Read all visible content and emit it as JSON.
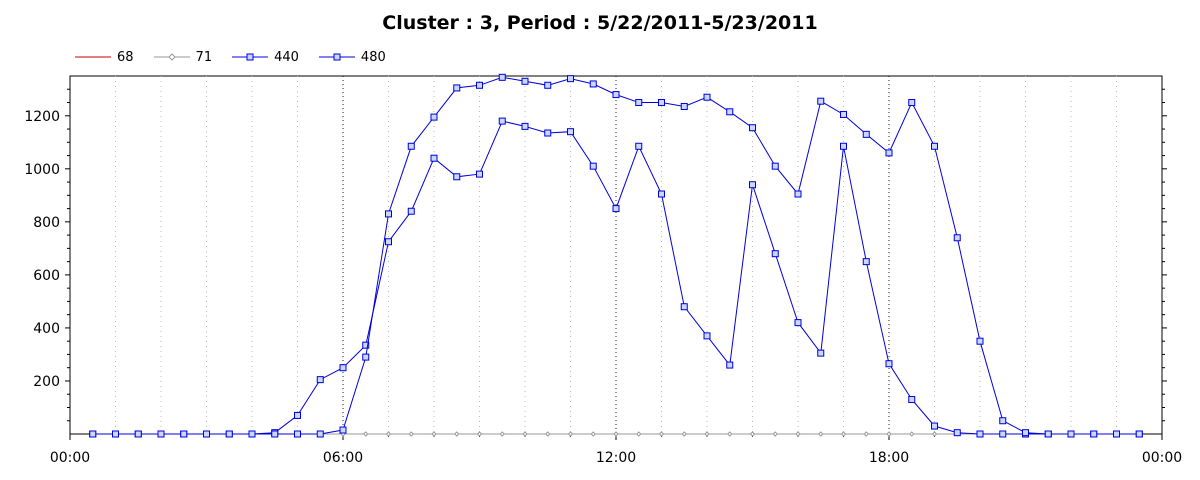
{
  "chart_data": {
    "type": "line",
    "title": "Cluster : 3, Period : 5/22/2011-5/23/2011",
    "xlabel": "",
    "ylabel": "",
    "xlim": [
      0,
      24
    ],
    "ylim": [
      0,
      1350
    ],
    "x_ticks": [
      "00:00",
      "06:00",
      "12:00",
      "18:00",
      "00:00"
    ],
    "y_ticks": [
      200,
      400,
      600,
      800,
      1000,
      1200
    ],
    "grid": true,
    "legend_position": "top-left",
    "x": [
      0.5,
      1.0,
      1.5,
      2.0,
      2.5,
      3.0,
      3.5,
      4.0,
      4.5,
      5.0,
      5.5,
      6.0,
      6.5,
      7.0,
      7.5,
      8.0,
      8.5,
      9.0,
      9.5,
      10.0,
      10.5,
      11.0,
      11.5,
      12.0,
      12.5,
      13.0,
      13.5,
      14.0,
      14.5,
      15.0,
      15.5,
      16.0,
      16.5,
      17.0,
      17.5,
      18.0,
      18.5,
      19.0,
      19.5,
      20.0,
      20.5,
      21.0,
      21.5,
      22.0,
      22.5,
      23.0,
      23.5
    ],
    "series": [
      {
        "name": "68",
        "color": "#cc0000",
        "marker": "none",
        "values": [
          0,
          0,
          0,
          0,
          0,
          0,
          0,
          0,
          0,
          0,
          0,
          0,
          0,
          0,
          0,
          0,
          0,
          0,
          0,
          0,
          0,
          0,
          0,
          0,
          0,
          0,
          0,
          0,
          0,
          0,
          0,
          0,
          0,
          0,
          0,
          0,
          0,
          0,
          0,
          0,
          0,
          0,
          0,
          0,
          0,
          0,
          0
        ]
      },
      {
        "name": "71",
        "color": "#999999",
        "marker": "diamond",
        "values": [
          0,
          0,
          0,
          0,
          0,
          0,
          0,
          0,
          0,
          0,
          0,
          0,
          0,
          0,
          0,
          0,
          0,
          0,
          0,
          0,
          0,
          0,
          0,
          0,
          0,
          0,
          0,
          0,
          0,
          0,
          0,
          0,
          0,
          0,
          0,
          0,
          0,
          0,
          0,
          0,
          0,
          0,
          0,
          0,
          0,
          0,
          0
        ]
      },
      {
        "name": "440",
        "color": "#0000dd",
        "marker": "square",
        "values": [
          0,
          0,
          0,
          0,
          0,
          0,
          0,
          0,
          5,
          70,
          205,
          250,
          335,
          725,
          840,
          1040,
          970,
          980,
          1180,
          1160,
          1135,
          1140,
          1010,
          850,
          1085,
          905,
          480,
          370,
          260,
          940,
          680,
          420,
          305,
          1085,
          650,
          265,
          130,
          30,
          5,
          0,
          0,
          0,
          0,
          0,
          0,
          0,
          0
        ]
      },
      {
        "name": "480",
        "color": "#0000dd",
        "marker": "square",
        "values": [
          0,
          0,
          0,
          0,
          0,
          0,
          0,
          0,
          0,
          0,
          0,
          15,
          290,
          830,
          1085,
          1195,
          1305,
          1315,
          1345,
          1330,
          1315,
          1340,
          1320,
          1280,
          1250,
          1250,
          1235,
          1270,
          1215,
          1155,
          1010,
          905,
          1255,
          1205,
          1130,
          1060,
          1250,
          1085,
          740,
          350,
          50,
          5,
          0,
          0,
          0,
          0,
          0
        ]
      }
    ]
  }
}
